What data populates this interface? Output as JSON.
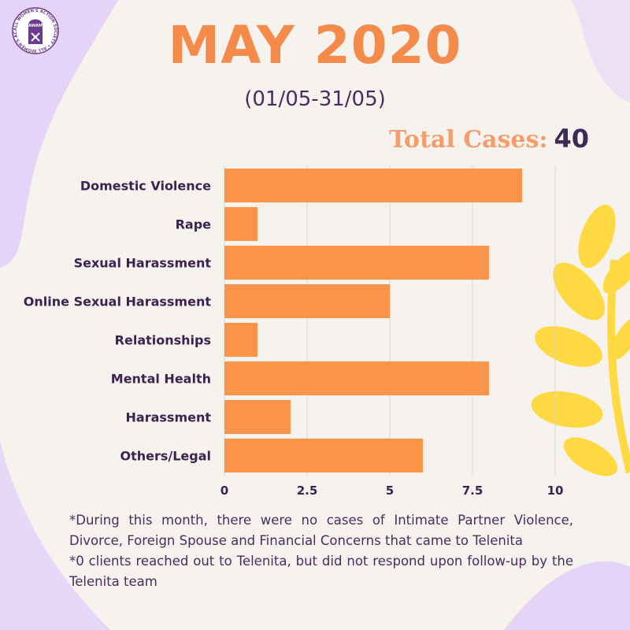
{
  "header": {
    "logo_text": "AWAM",
    "logo_ring_text": "ALL WOMEN'S ACTION SOCIETY • ALL WOMEN'S ACTION SOCIETY •",
    "title": "MAY 2020",
    "date_range": "(01/05-31/05)",
    "total_label": "Total Cases:",
    "total_value": "40"
  },
  "colors": {
    "bar": "#f99448",
    "title": "#f58b4b",
    "text": "#3b2250",
    "background": "#f6f3ee",
    "blob_lavender": "#e6d4f8",
    "leaf_yellow": "#ffd941"
  },
  "chart_data": {
    "type": "bar",
    "orientation": "horizontal",
    "categories": [
      "Domestic Violence",
      "Rape",
      "Sexual Harassment",
      "Online Sexual Harassment",
      "Relationships",
      "Mental Health",
      "Harassment",
      "Others/Legal"
    ],
    "values": [
      9,
      1,
      8,
      5,
      1,
      8,
      2,
      6
    ],
    "xlim": [
      0,
      10
    ],
    "xticks": [
      0,
      2.5,
      5,
      7.5,
      10
    ],
    "xtick_labels": [
      "0",
      "2.5",
      "5",
      "7.5",
      "10"
    ],
    "grid": true,
    "legend": false
  },
  "notes": [
    "*During this month, there were no cases of Intimate Partner Violence, Divorce, Foreign Spouse and Financial Concerns that came to Telenita",
    "*0 clients reached out to Telenita, but did not respond upon follow-up by the Telenita team"
  ]
}
